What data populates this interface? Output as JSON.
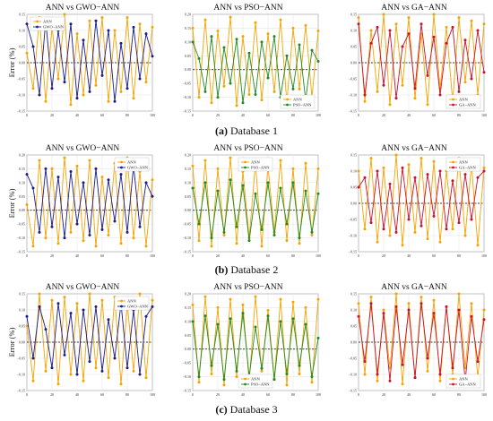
{
  "figure": {
    "rows": [
      {
        "caption_letter": "(a)",
        "caption_text": "Database 1",
        "ylabel": "Error (%)",
        "panels": [
          {
            "title": "ANN vs GWO−ANN",
            "legend": [
              "ANN",
              "GWO−ANN"
            ],
            "legend_pos": "upper-left",
            "yticks": [
              "0.15",
              "0.10",
              "0.05",
              "0.00",
              "−0.05",
              "−0.10",
              "−0.15"
            ],
            "xticks": [
              "0",
              "20",
              "40",
              "60",
              "80",
              "100"
            ]
          },
          {
            "title": "ANN vs PSO−ANN",
            "legend": [
              "ANN",
              "PSO−ANN"
            ],
            "legend_pos": "lower-right",
            "yticks": [
              "0.20",
              "0.15",
              "0.10",
              "0.05",
              "0.00",
              "−0.05",
              "−0.10",
              "−0.15"
            ],
            "xticks": [
              "0",
              "20",
              "40",
              "60",
              "80",
              "100"
            ]
          },
          {
            "title": "ANN vs GA−ANN",
            "legend": [
              "ANN",
              "GA−ANN"
            ],
            "legend_pos": "lower-right",
            "yticks": [
              "0.15",
              "0.10",
              "0.05",
              "0.00",
              "−0.05",
              "−0.10",
              "−0.15"
            ],
            "xticks": [
              "0",
              "20",
              "40",
              "60",
              "80",
              "100"
            ]
          }
        ]
      },
      {
        "caption_letter": "(b)",
        "caption_text": "Database 2",
        "ylabel": "Error (%)",
        "panels": [
          {
            "title": "ANN vs GWO−ANN",
            "legend": [
              "ANN",
              "GWO−ANN"
            ],
            "legend_pos": "upper-right",
            "yticks": [
              "0.20",
              "0.15",
              "0.10",
              "0.05",
              "0.00",
              "−0.05",
              "−0.10",
              "−0.15"
            ],
            "xticks": [
              "0",
              "20",
              "40",
              "60",
              "80",
              "100"
            ]
          },
          {
            "title": "ANN vs PSO−ANN",
            "legend": [
              "ANN",
              "PSO−ANN"
            ],
            "legend_pos": "upper-center",
            "yticks": [
              "0.20",
              "0.15",
              "0.10",
              "0.05",
              "0.00",
              "−0.05",
              "−0.10",
              "−0.15"
            ],
            "xticks": [
              "0",
              "20",
              "40",
              "60",
              "80",
              "100"
            ]
          },
          {
            "title": "ANN vs GA−ANN",
            "legend": [
              "ANN",
              "GA−ANN"
            ],
            "legend_pos": "upper-right",
            "yticks": [
              "0.15",
              "0.10",
              "0.05",
              "0.00",
              "−0.05",
              "−0.10",
              "−0.15"
            ],
            "xticks": [
              "0",
              "20",
              "40",
              "60",
              "80",
              "100"
            ]
          }
        ]
      },
      {
        "caption_letter": "(c)",
        "caption_text": "Database 3",
        "ylabel": "Error (%)",
        "panels": [
          {
            "title": "ANN vs GWO−ANN",
            "legend": [
              "ANN",
              "GWO−ANN"
            ],
            "legend_pos": "upper-right",
            "yticks": [
              "0.15",
              "0.10",
              "0.05",
              "0.00",
              "−0.05",
              "−0.10",
              "−0.15"
            ],
            "xticks": [
              "0",
              "20",
              "40",
              "60",
              "80",
              "100"
            ]
          },
          {
            "title": "ANN vs PSO−ANN",
            "legend": [
              "ANN",
              "PSO−ANN"
            ],
            "legend_pos": "lower-center",
            "yticks": [
              "0.20",
              "0.15",
              "0.10",
              "0.05",
              "0.00",
              "−0.05",
              "−0.10",
              "−0.15"
            ],
            "xticks": [
              "0",
              "20",
              "40",
              "60",
              "80",
              "100"
            ]
          },
          {
            "title": "ANN vs GA−ANN",
            "legend": [
              "ANN",
              "GA−ANN"
            ],
            "legend_pos": "lower-right",
            "yticks": [
              "0.15",
              "0.10",
              "0.05",
              "0.00",
              "−0.05",
              "−0.10",
              "−0.15"
            ],
            "xticks": [
              "0",
              "20",
              "40",
              "60",
              "80",
              "100"
            ]
          }
        ]
      }
    ]
  },
  "colors": {
    "ANN": "#f5a300",
    "GWO-ANN": "#1a1a8c",
    "PSO-ANN": "#1f8a1f",
    "GA-ANN": "#c8102e",
    "zero_line": "#000000",
    "grid": "#e2e2e2",
    "frame": "#666666"
  },
  "chart_data": [
    {
      "type": "line",
      "panel": "a1",
      "title": "ANN vs GWO−ANN",
      "ylabel": "Error (%)",
      "xlim": [
        0,
        100
      ],
      "ylim": [
        -0.15,
        0.15
      ],
      "grid": true,
      "zero_line": true,
      "legend_position": "upper-left",
      "x": [
        0,
        5,
        10,
        15,
        20,
        25,
        30,
        35,
        40,
        45,
        50,
        55,
        60,
        65,
        70,
        75,
        80,
        85,
        90,
        95,
        100
      ],
      "series": [
        {
          "name": "ANN",
          "values": [
            0.03,
            -0.08,
            0.14,
            -0.12,
            0.11,
            -0.05,
            0.15,
            -0.13,
            0.09,
            -0.1,
            0.13,
            -0.07,
            0.14,
            -0.12,
            0.1,
            -0.09,
            0.14,
            -0.11,
            0.12,
            -0.06,
            0.11
          ]
        },
        {
          "name": "GWO−ANN",
          "values": [
            0.12,
            0.05,
            -0.1,
            0.13,
            -0.08,
            0.1,
            -0.06,
            0.12,
            -0.11,
            0.07,
            -0.09,
            0.13,
            -0.04,
            0.1,
            -0.12,
            0.06,
            -0.08,
            0.11,
            -0.05,
            0.09,
            0.02
          ]
        }
      ]
    },
    {
      "type": "line",
      "panel": "a2",
      "title": "ANN vs PSO−ANN",
      "xlim": [
        0,
        100
      ],
      "ylim": [
        -0.15,
        0.2
      ],
      "grid": true,
      "zero_line": true,
      "legend_position": "lower-right",
      "x": [
        0,
        5,
        10,
        15,
        20,
        25,
        30,
        35,
        40,
        45,
        50,
        55,
        60,
        65,
        70,
        75,
        80,
        85,
        90,
        95,
        100
      ],
      "series": [
        {
          "name": "ANN",
          "values": [
            0.15,
            -0.1,
            0.18,
            -0.12,
            0.14,
            -0.06,
            0.19,
            -0.13,
            0.12,
            -0.09,
            0.17,
            -0.11,
            0.13,
            -0.08,
            0.18,
            -0.12,
            0.15,
            -0.07,
            0.16,
            -0.1,
            0.14
          ]
        },
        {
          "name": "PSO−ANN",
          "values": [
            0.1,
            0.04,
            -0.08,
            0.12,
            -0.1,
            0.08,
            -0.05,
            0.11,
            -0.12,
            0.06,
            -0.09,
            0.1,
            -0.03,
            0.12,
            -0.1,
            0.05,
            -0.07,
            0.09,
            -0.11,
            0.07,
            0.03
          ]
        }
      ]
    },
    {
      "type": "line",
      "panel": "a3",
      "title": "ANN vs GA−ANN",
      "xlim": [
        0,
        100
      ],
      "ylim": [
        -0.15,
        0.15
      ],
      "grid": true,
      "zero_line": true,
      "legend_position": "lower-right",
      "x": [
        0,
        5,
        10,
        15,
        20,
        25,
        30,
        35,
        40,
        45,
        50,
        55,
        60,
        65,
        70,
        75,
        80,
        85,
        90,
        95,
        100
      ],
      "series": [
        {
          "name": "ANN",
          "values": [
            0.14,
            -0.12,
            0.1,
            -0.09,
            0.15,
            -0.13,
            0.12,
            -0.07,
            0.14,
            -0.11,
            0.09,
            -0.13,
            0.15,
            -0.08,
            0.11,
            -0.12,
            0.14,
            -0.06,
            0.13,
            -0.1,
            0.12
          ]
        },
        {
          "name": "GA−ANN",
          "values": [
            0.12,
            -0.1,
            0.06,
            0.11,
            -0.07,
            0.1,
            -0.11,
            0.05,
            0.09,
            -0.08,
            0.12,
            -0.04,
            0.08,
            -0.1,
            0.06,
            0.11,
            -0.09,
            0.07,
            -0.05,
            0.1,
            -0.03
          ]
        }
      ]
    },
    {
      "type": "line",
      "panel": "b1",
      "title": "ANN vs GWO−ANN",
      "ylabel": "Error (%)",
      "xlim": [
        0,
        100
      ],
      "ylim": [
        -0.15,
        0.2
      ],
      "grid": true,
      "zero_line": true,
      "legend_position": "upper-right",
      "x": [
        0,
        5,
        10,
        15,
        20,
        25,
        30,
        35,
        40,
        45,
        50,
        55,
        60,
        65,
        70,
        75,
        80,
        85,
        90,
        95,
        100
      ],
      "series": [
        {
          "name": "ANN",
          "values": [
            0.02,
            -0.13,
            0.18,
            -0.1,
            0.15,
            -0.12,
            0.19,
            -0.08,
            0.16,
            -0.11,
            0.18,
            -0.13,
            0.12,
            -0.09,
            0.17,
            -0.12,
            0.19,
            -0.1,
            0.14,
            -0.13,
            0.11
          ]
        },
        {
          "name": "GWO−ANN",
          "values": [
            0.13,
            0.08,
            -0.08,
            0.15,
            -0.06,
            0.12,
            -0.1,
            0.14,
            -0.05,
            0.1,
            -0.09,
            0.15,
            -0.07,
            0.11,
            -0.04,
            0.13,
            -0.08,
            0.16,
            -0.06,
            0.1,
            0.05
          ]
        }
      ]
    },
    {
      "type": "line",
      "panel": "b2",
      "title": "ANN vs PSO−ANN",
      "xlim": [
        0,
        100
      ],
      "ylim": [
        -0.15,
        0.2
      ],
      "grid": true,
      "zero_line": true,
      "legend_position": "upper-center",
      "x": [
        0,
        5,
        10,
        15,
        20,
        25,
        30,
        35,
        40,
        45,
        50,
        55,
        60,
        65,
        70,
        75,
        80,
        85,
        90,
        95,
        100
      ],
      "series": [
        {
          "name": "ANN",
          "values": [
            0.16,
            -0.11,
            0.18,
            -0.13,
            0.15,
            -0.09,
            0.19,
            -0.12,
            0.14,
            -0.1,
            0.17,
            -0.13,
            0.16,
            -0.08,
            0.18,
            -0.11,
            0.15,
            -0.12,
            0.17,
            -0.09,
            0.15
          ]
        },
        {
          "name": "PSO−ANN",
          "values": [
            0.08,
            -0.05,
            0.1,
            -0.1,
            0.07,
            -0.08,
            0.11,
            -0.06,
            0.09,
            -0.11,
            0.06,
            -0.07,
            0.1,
            -0.09,
            0.08,
            -0.05,
            0.1,
            -0.1,
            0.07,
            -0.08,
            0.06
          ]
        }
      ]
    },
    {
      "type": "line",
      "panel": "b3",
      "title": "ANN vs GA−ANN",
      "xlim": [
        0,
        100
      ],
      "ylim": [
        -0.15,
        0.15
      ],
      "grid": true,
      "zero_line": true,
      "legend_position": "upper-right",
      "x": [
        0,
        5,
        10,
        15,
        20,
        25,
        30,
        35,
        40,
        45,
        50,
        55,
        60,
        65,
        70,
        75,
        80,
        85,
        90,
        95,
        100
      ],
      "series": [
        {
          "name": "ANN",
          "values": [
            0.1,
            -0.08,
            0.14,
            -0.12,
            0.11,
            -0.1,
            0.15,
            -0.13,
            0.12,
            -0.09,
            0.14,
            -0.11,
            0.13,
            -0.12,
            0.1,
            -0.08,
            0.14,
            -0.1,
            0.12,
            -0.13,
            0.11
          ]
        },
        {
          "name": "GA−ANN",
          "values": [
            0.05,
            0.08,
            -0.06,
            0.1,
            -0.08,
            0.06,
            -0.09,
            0.11,
            -0.05,
            0.08,
            -0.07,
            0.09,
            -0.04,
            0.1,
            -0.08,
            0.07,
            -0.06,
            0.09,
            -0.05,
            0.08,
            0.1
          ]
        }
      ]
    },
    {
      "type": "line",
      "panel": "c1",
      "title": "ANN vs GWO−ANN",
      "ylabel": "Error (%)",
      "xlim": [
        0,
        100
      ],
      "ylim": [
        -0.15,
        0.15
      ],
      "grid": true,
      "zero_line": true,
      "legend_position": "upper-right",
      "x": [
        0,
        5,
        10,
        15,
        20,
        25,
        30,
        35,
        40,
        45,
        50,
        55,
        60,
        65,
        70,
        75,
        80,
        85,
        90,
        95,
        100
      ],
      "series": [
        {
          "name": "ANN",
          "values": [
            0.05,
            -0.12,
            0.15,
            -0.09,
            0.13,
            -0.13,
            0.14,
            -0.1,
            0.12,
            -0.12,
            0.15,
            -0.08,
            0.13,
            -0.11,
            0.14,
            -0.13,
            0.12,
            -0.09,
            0.15,
            -0.11,
            0.13
          ]
        },
        {
          "name": "GWO−ANN",
          "values": [
            0.08,
            -0.05,
            0.11,
            0.04,
            -0.08,
            0.12,
            -0.04,
            0.09,
            -0.1,
            0.1,
            -0.06,
            0.11,
            -0.09,
            0.07,
            -0.05,
            0.12,
            -0.08,
            0.1,
            -0.1,
            0.08,
            0.11
          ]
        }
      ]
    },
    {
      "type": "line",
      "panel": "c2",
      "title": "ANN vs PSO−ANN",
      "xlim": [
        0,
        100
      ],
      "ylim": [
        -0.15,
        0.2
      ],
      "grid": true,
      "zero_line": true,
      "legend_position": "lower-center",
      "x": [
        0,
        5,
        10,
        15,
        20,
        25,
        30,
        35,
        40,
        45,
        50,
        55,
        60,
        65,
        70,
        75,
        80,
        85,
        90,
        95,
        100
      ],
      "series": [
        {
          "name": "ANN",
          "values": [
            0.16,
            -0.12,
            0.19,
            -0.09,
            0.15,
            -0.13,
            0.18,
            -0.1,
            0.16,
            -0.12,
            0.19,
            -0.08,
            0.14,
            -0.11,
            0.18,
            -0.13,
            0.17,
            -0.09,
            0.15,
            -0.12,
            0.18
          ]
        },
        {
          "name": "PSO−ANN",
          "values": [
            0.1,
            -0.1,
            0.12,
            -0.06,
            0.09,
            -0.11,
            0.11,
            -0.08,
            0.13,
            -0.1,
            0.08,
            -0.07,
            0.12,
            -0.11,
            0.1,
            -0.09,
            0.11,
            -0.06,
            0.09,
            -0.1,
            0.04
          ]
        }
      ]
    },
    {
      "type": "line",
      "panel": "c3",
      "title": "ANN vs GA−ANN",
      "xlim": [
        0,
        100
      ],
      "ylim": [
        -0.15,
        0.15
      ],
      "grid": true,
      "zero_line": true,
      "legend_position": "lower-right",
      "x": [
        0,
        5,
        10,
        15,
        20,
        25,
        30,
        35,
        40,
        45,
        50,
        55,
        60,
        65,
        70,
        75,
        80,
        85,
        90,
        95,
        100
      ],
      "series": [
        {
          "name": "ANN",
          "values": [
            0.12,
            -0.1,
            0.14,
            -0.12,
            0.1,
            -0.08,
            0.15,
            -0.13,
            0.12,
            -0.11,
            0.14,
            -0.09,
            0.13,
            -0.12,
            0.11,
            -0.1,
            0.15,
            -0.08,
            0.12,
            -0.11,
            0.1
          ]
        },
        {
          "name": "GA−ANN",
          "values": [
            0.08,
            -0.06,
            0.12,
            -0.1,
            0.09,
            -0.12,
            0.11,
            -0.07,
            0.1,
            -0.11,
            0.12,
            -0.05,
            0.09,
            -0.1,
            0.11,
            -0.08,
            0.1,
            -0.12,
            0.08,
            -0.06,
            0.07
          ]
        }
      ]
    }
  ]
}
